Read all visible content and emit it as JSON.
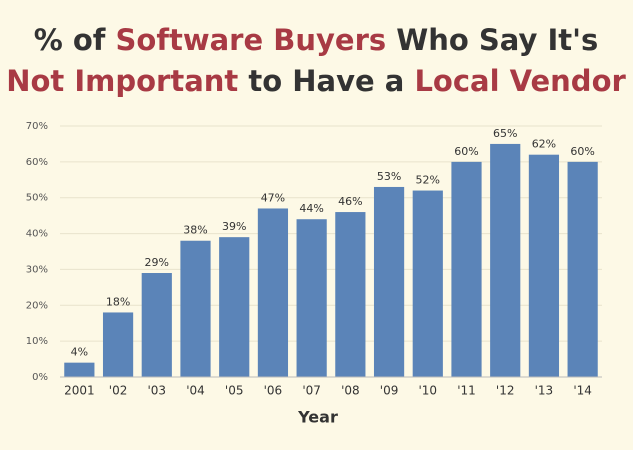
{
  "chart_data": {
    "type": "bar",
    "title_lines": [
      [
        {
          "text": "% of ",
          "color": "#333333"
        },
        {
          "text": "Software Buyers",
          "color": "#a83a44"
        },
        {
          "text": " Who Say It's",
          "color": "#333333"
        }
      ],
      [
        {
          "text": "Not Important",
          "color": "#a83a44"
        },
        {
          "text": " to Have a ",
          "color": "#333333"
        },
        {
          "text": "Local Vendor",
          "color": "#a83a44"
        }
      ]
    ],
    "x_label": "Year",
    "categories": [
      "2001",
      "'02",
      "'03",
      "'04",
      "'05",
      "'06",
      "'07",
      "'08",
      "'09",
      "'10",
      "'11",
      "'12",
      "'13",
      "'14"
    ],
    "values": [
      4,
      18,
      29,
      38,
      39,
      47,
      44,
      46,
      53,
      52,
      60,
      65,
      62,
      60
    ],
    "value_labels": [
      "4%",
      "18%",
      "29%",
      "38%",
      "39%",
      "47%",
      "44%",
      "46%",
      "53%",
      "52%",
      "60%",
      "65%",
      "62%",
      "60%"
    ],
    "color": "#5b84b8",
    "ylim": [
      0,
      70
    ],
    "yticks": [
      {
        "value": 0,
        "label": "0%"
      },
      {
        "value": 10,
        "label": "10%"
      },
      {
        "value": 20,
        "label": "20%"
      },
      {
        "value": 30,
        "label": "30%"
      },
      {
        "value": 40,
        "label": "40%"
      },
      {
        "value": 50,
        "label": "50%"
      },
      {
        "value": 60,
        "label": "60%"
      },
      {
        "value": 70,
        "label": "70%"
      }
    ],
    "grid": true
  }
}
